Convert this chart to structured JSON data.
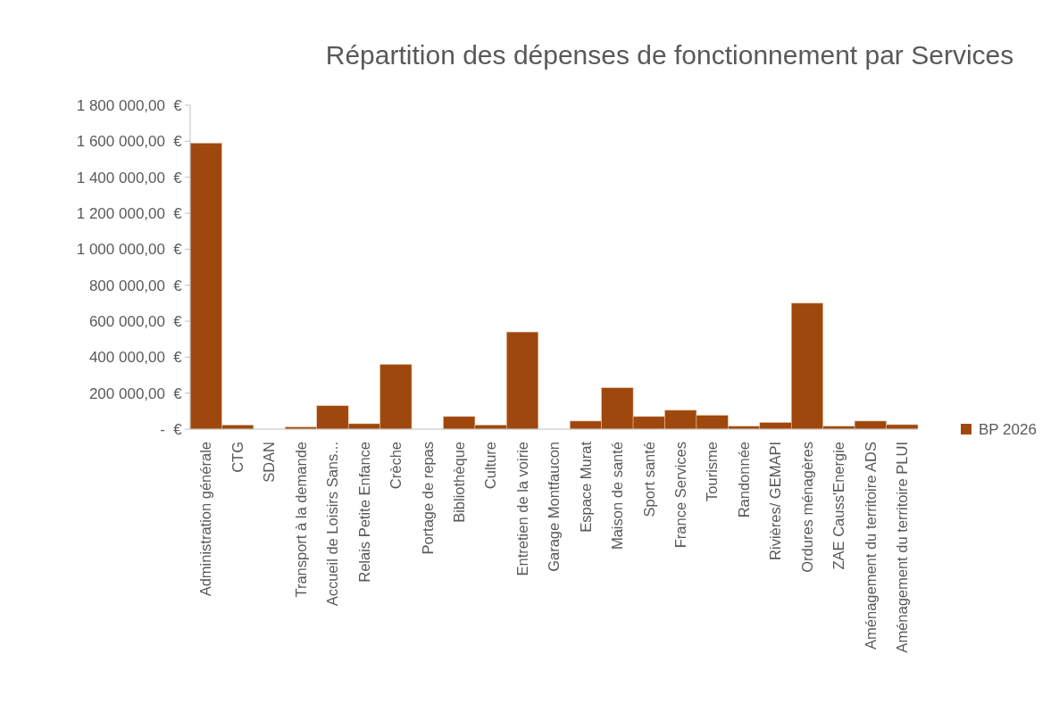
{
  "chart_data": {
    "type": "bar",
    "title": "Répartition des dépenses de fonctionnement par Services",
    "categories": [
      "Administration générale",
      "CTG",
      "SDAN",
      "Transport à la demande",
      "Accueil de Loisirs Sans...",
      "Relais Petite Enfance",
      "Crèche",
      "Portage de repas",
      "Bibliothèque",
      "Culture",
      "Entretien de la voirie",
      "Garage Montfaucon",
      "Espace Murat",
      "Maison de santé",
      "Sport santé",
      "France Services",
      "Tourisme",
      "Randonnée",
      "Rivières/ GEMAPI",
      "Ordures ménagères",
      "ZAE Causs'Energie",
      "Aménagement du territoire ADS",
      "Aménagement du territoire PLUI"
    ],
    "series": [
      {
        "name": "BP 2026",
        "color": "#9e480e",
        "values": [
          1590000,
          23000,
          null,
          12000,
          130000,
          30000,
          360000,
          null,
          70000,
          23000,
          540000,
          null,
          45000,
          230000,
          70000,
          105000,
          77000,
          16000,
          37000,
          700000,
          16000,
          45000,
          25000
        ]
      }
    ],
    "ylim": [
      0,
      1800000
    ],
    "yticks": [
      {
        "value": 0,
        "label": "-   €"
      },
      {
        "value": 200000,
        "label": "200 000,00 €"
      },
      {
        "value": 400000,
        "label": "400 000,00 €"
      },
      {
        "value": 600000,
        "label": "600 000,00 €"
      },
      {
        "value": 800000,
        "label": "800 000,00 €"
      },
      {
        "value": 1000000,
        "label": "1 000 000,00 €"
      },
      {
        "value": 1200000,
        "label": "1 200 000,00 €"
      },
      {
        "value": 1400000,
        "label": "1 400 000,00 €"
      },
      {
        "value": 1600000,
        "label": "1 600 000,00 €"
      },
      {
        "value": 1800000,
        "label": "1 800 000,00 €"
      }
    ],
    "grid": false,
    "legend": "right"
  }
}
